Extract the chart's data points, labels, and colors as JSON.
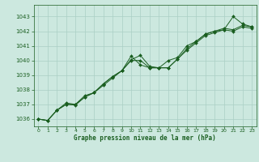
{
  "title": "Graphe pression niveau de la mer (hPa)",
  "bg_color": "#cce8df",
  "grid_color": "#aacfc5",
  "line_color": "#1a5e20",
  "xlim": [
    -0.5,
    23.5
  ],
  "ylim": [
    1035.5,
    1043.8
  ],
  "xticks": [
    0,
    1,
    2,
    3,
    4,
    5,
    6,
    7,
    8,
    9,
    10,
    11,
    12,
    13,
    14,
    15,
    16,
    17,
    18,
    19,
    20,
    21,
    22,
    23
  ],
  "yticks": [
    1036,
    1037,
    1038,
    1039,
    1040,
    1041,
    1042,
    1043
  ],
  "series": [
    [
      1036.0,
      1035.9,
      1036.6,
      1037.0,
      1037.0,
      1037.5,
      1037.8,
      1038.3,
      1038.8,
      1039.3,
      1040.3,
      1039.7,
      1039.5,
      1039.5,
      1040.0,
      1040.2,
      1041.0,
      1041.3,
      1041.8,
      1042.0,
      1042.1,
      1043.0,
      1042.5,
      1042.3
    ],
    [
      1036.0,
      1035.9,
      1036.6,
      1037.1,
      1037.0,
      1037.6,
      1037.8,
      1038.4,
      1038.9,
      1039.3,
      1040.05,
      1040.35,
      1039.6,
      1039.5,
      1039.5,
      1040.1,
      1040.8,
      1041.3,
      1041.8,
      1042.0,
      1042.2,
      1042.1,
      1042.4,
      1042.3
    ],
    [
      1036.0,
      1035.9,
      1036.6,
      1037.0,
      1036.95,
      1037.5,
      1037.8,
      1038.4,
      1038.9,
      1039.3,
      1040.0,
      1040.0,
      1039.5,
      1039.5,
      1039.5,
      1040.1,
      1040.7,
      1041.2,
      1041.7,
      1041.9,
      1042.1,
      1042.0,
      1042.3,
      1042.2
    ]
  ]
}
